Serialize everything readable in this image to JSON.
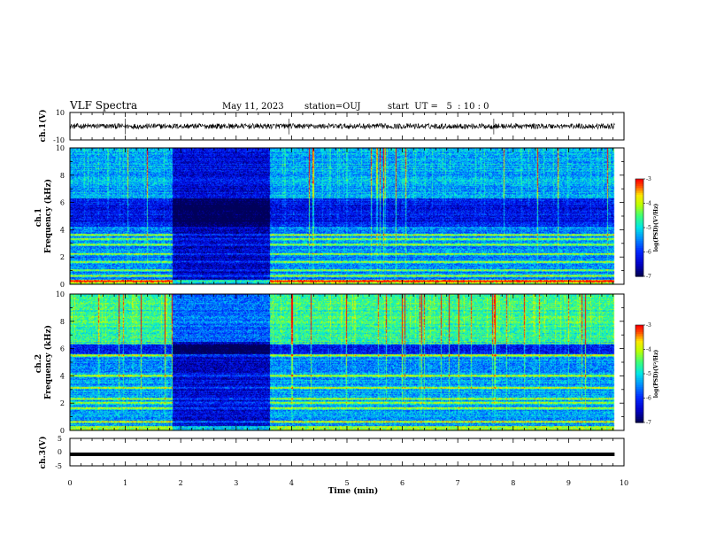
{
  "header": {
    "title": "VLF Spectra",
    "date": "May 11, 2023",
    "station": "station=OUJ",
    "start": "start  UT =   5  : 10 : 0"
  },
  "colors": {
    "trace": "#000000",
    "colormap": [
      "#00007a",
      "#0000ff",
      "#0080ff",
      "#00ffff",
      "#40ff80",
      "#c0ff00",
      "#ffff00",
      "#ff8000",
      "#ff0000",
      "#ffffff"
    ]
  },
  "chart_data": [
    {
      "type": "line",
      "name": "ch1-waveform",
      "ylabel": "ch.1(V)",
      "ylim": [
        -10,
        10
      ],
      "yticks": [
        "10",
        "-10"
      ],
      "xlim": [
        0,
        10
      ],
      "data_end_min": 9.83,
      "baseline": 0,
      "noise_band": [
        -2,
        2
      ],
      "spikes_at_min": [
        1.0,
        3.95,
        7.65
      ]
    },
    {
      "type": "heatmap",
      "name": "ch1-spectrogram",
      "ylabel": "ch.1\nFrequency (kHz)",
      "ylim": [
        0,
        10
      ],
      "yticks": [
        "0",
        "2",
        "4",
        "6",
        "8",
        "10"
      ],
      "xlim": [
        0,
        10
      ],
      "data_end_min": 9.83,
      "quiet_interval_min": [
        1.85,
        3.6
      ],
      "bright_bands_khz": [
        0.2,
        0.6,
        1.0,
        1.6,
        2.2,
        2.9,
        3.3,
        3.6
      ],
      "colorbar": {
        "label": "log(PSD)(V²/Hz)",
        "range": [
          -7,
          -3
        ],
        "ticks": [
          "-3",
          "-4",
          "-5",
          "-6",
          "-7"
        ]
      }
    },
    {
      "type": "heatmap",
      "name": "ch2-spectrogram",
      "ylabel": "ch.2\nFrequency (kHz)",
      "ylim": [
        0,
        10
      ],
      "yticks": [
        "0",
        "2",
        "4",
        "6",
        "8",
        "10"
      ],
      "xlim": [
        0,
        10
      ],
      "data_end_min": 9.83,
      "quiet_interval_min": [
        1.85,
        3.6
      ],
      "bright_bands_khz": [
        0.6,
        1.6,
        2.0,
        2.3,
        3.1,
        4.0,
        5.5,
        6.4
      ],
      "colorbar": {
        "label": "log(PSD)(V²/Hz)",
        "range": [
          -7,
          -3
        ],
        "ticks": [
          "-3",
          "-4",
          "-5",
          "-6",
          "-7"
        ]
      }
    },
    {
      "type": "line",
      "name": "ch3-waveform",
      "ylabel": "ch.3(V)",
      "ylim": [
        -5,
        5
      ],
      "yticks": [
        "5",
        "0",
        "-5"
      ],
      "xlim": [
        0,
        10
      ],
      "data_end_min": 9.83,
      "level": -0.8
    }
  ],
  "xaxis": {
    "label": "Time (min)",
    "ticks": [
      "0",
      "1",
      "2",
      "3",
      "4",
      "5",
      "6",
      "7",
      "8",
      "9",
      "10"
    ]
  }
}
